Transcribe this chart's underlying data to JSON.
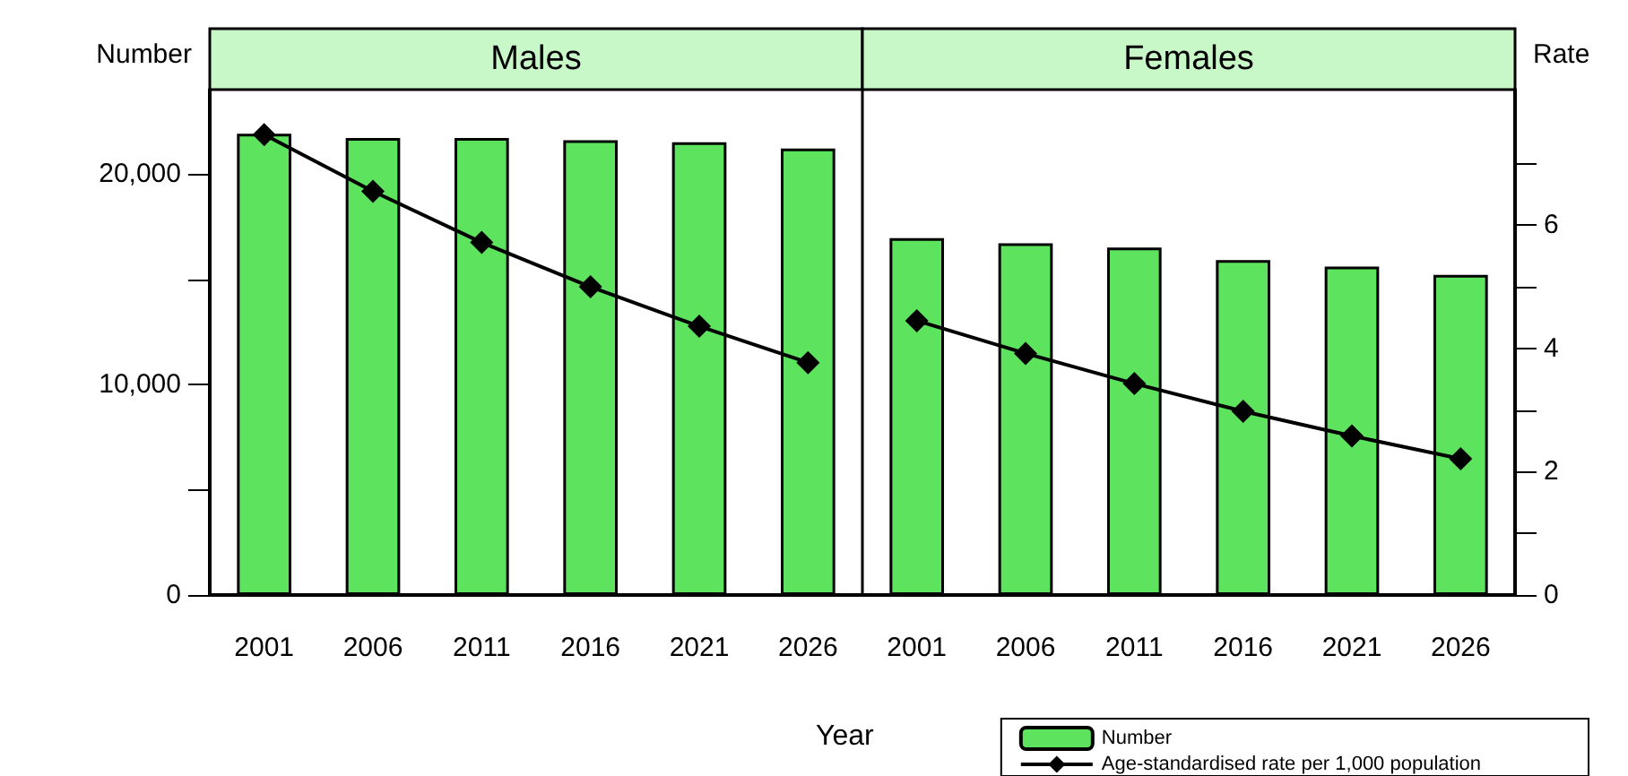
{
  "chart_data": {
    "type": "bar",
    "xlabel": "Year",
    "ylabel": "Number",
    "y2label": "Rate",
    "annotations": [
      "Males",
      "Females"
    ],
    "categories": [
      "2001",
      "2006",
      "2011",
      "2016",
      "2021",
      "2026",
      "2001",
      "2006",
      "2011",
      "2016",
      "2021",
      "2026"
    ],
    "series": [
      {
        "name": "Number",
        "color": "#5ee35e",
        "values": [
          21900,
          21700,
          21700,
          21600,
          21500,
          21200,
          16950,
          16700,
          16500,
          15900,
          15600,
          15200
        ]
      },
      {
        "name": "Age-standardised rate per 1,000 population",
        "type": "line",
        "axis": "y2",
        "color": "#000000",
        "values": [
          7.47,
          6.55,
          5.72,
          5.0,
          4.36,
          3.77,
          null,
          null,
          null,
          null,
          null,
          null
        ]
      },
      {
        "type": "line",
        "axis": "y2",
        "color": "#000000",
        "values": [
          null,
          null,
          null,
          null,
          null,
          null,
          4.45,
          3.92,
          3.43,
          2.98,
          2.58,
          2.21
        ]
      }
    ],
    "ylim": [
      0,
      24000
    ],
    "yticks": [
      0,
      {
        "value": 5000,
        "label": null
      },
      {
        "value": 10000,
        "label": "10,000"
      },
      {
        "value": 15000,
        "label": null
      },
      {
        "value": 20000,
        "label": "20,000"
      }
    ],
    "y2lim": [
      0,
      8.2
    ],
    "y2ticks": [
      0,
      {
        "value": 1,
        "label": null
      },
      2,
      {
        "value": 3,
        "label": null
      },
      4,
      {
        "value": 5,
        "label": null
      },
      6,
      {
        "value": 7,
        "label": null
      }
    ],
    "marker": "diamond",
    "line_style": "solid",
    "legend": "bottom right"
  }
}
